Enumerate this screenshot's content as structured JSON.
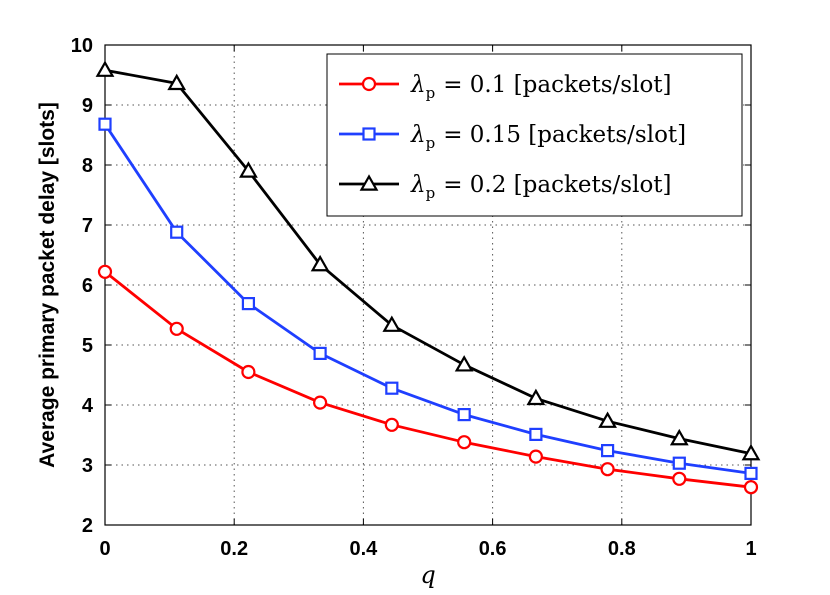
{
  "chart_data": {
    "type": "line",
    "title": "",
    "xlabel": "q",
    "ylabel": "Average primary packet delay [slots]",
    "xlim": [
      0,
      1
    ],
    "ylim": [
      2,
      10
    ],
    "x_ticks": [
      "0",
      "0.2",
      "0.4",
      "0.6",
      "0.8",
      "1"
    ],
    "y_ticks": [
      "2",
      "3",
      "4",
      "5",
      "6",
      "7",
      "8",
      "9",
      "10"
    ],
    "grid": true,
    "legend_position": "top-right",
    "x": [
      0,
      0.111,
      0.222,
      0.333,
      0.444,
      0.556,
      0.667,
      0.778,
      0.889,
      1.0
    ],
    "series": [
      {
        "name": "λp = 0.1 [packets/slot]",
        "legend_symbol": "λ",
        "legend_sub": "p",
        "legend_value": "= 0.1 [packets/slot]",
        "color": "#ff0000",
        "marker": "circle",
        "values": [
          6.22,
          5.27,
          4.55,
          4.04,
          3.67,
          3.38,
          3.14,
          2.93,
          2.77,
          2.63
        ]
      },
      {
        "name": "λp = 0.15 [packets/slot]",
        "legend_symbol": "λ",
        "legend_sub": "p",
        "legend_value": "= 0.15 [packets/slot]",
        "color": "#1f3fff",
        "marker": "square",
        "values": [
          8.68,
          6.88,
          5.69,
          4.86,
          4.28,
          3.84,
          3.51,
          3.24,
          3.03,
          2.86
        ]
      },
      {
        "name": "λp = 0.2 [packets/slot]",
        "legend_symbol": "λ",
        "legend_sub": "p",
        "legend_value": "= 0.2 [packets/slot]",
        "color": "#000000",
        "marker": "triangle",
        "values": [
          9.58,
          9.36,
          7.9,
          6.34,
          5.33,
          4.67,
          4.11,
          3.73,
          3.44,
          3.19
        ]
      }
    ]
  }
}
